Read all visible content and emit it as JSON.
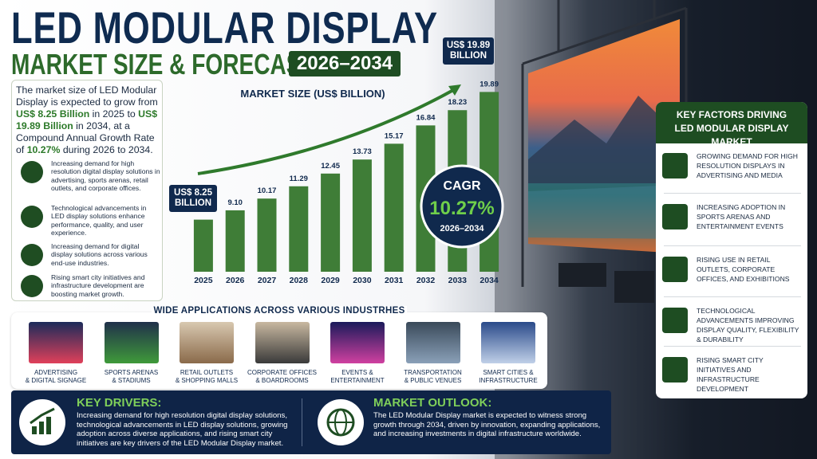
{
  "header": {
    "title": "LED MODULAR DISPLAY",
    "subtitle": "MARKET SIZE & FORECAST",
    "years": "2026–2034"
  },
  "summary": [
    "The market size of LED Modular Display is expected to grow from ",
    "US$ 8.25 Billion",
    " in 2025 to ",
    "US$ 19.89 Billion",
    " in 2034, at a Compound Annual Growth Rate of ",
    "10.27%",
    " during 2026 to 2034."
  ],
  "points": [
    "Increasing demand for high resolution digital display solutions in advertising, sports arenas, retail outlets, and corporate offices.",
    "Technological advancements in LED display solutions enhance performance, quality, and user experience.",
    "Increasing demand for digital display solutions across various end-use industries.",
    "Rising smart city initiatives and infrastructure development are boosting market growth."
  ],
  "chart_data": {
    "type": "bar",
    "title": "MARKET SIZE (US$ BILLION)",
    "categories": [
      "2025",
      "2026",
      "2027",
      "2028",
      "2029",
      "2030",
      "2031",
      "2032",
      "2033",
      "2034"
    ],
    "values": [
      8.25,
      9.1,
      10.17,
      11.29,
      12.45,
      13.73,
      15.17,
      16.84,
      18.23,
      19.89
    ],
    "value_labels": [
      null,
      "9.10",
      "10.17",
      "11.29",
      "12.45",
      "13.73",
      "15.17",
      "16.84",
      "18.23",
      "19.89"
    ],
    "color": "#3f7d37",
    "ylim": [
      3.5,
      20.5
    ],
    "start_callout": "US$ 8.25 BILLION",
    "end_callout": "US$ 19.89 BILLION"
  },
  "cagr": {
    "label": "CAGR",
    "value": "10.27%",
    "period": "2026–2034"
  },
  "applications": {
    "title": "WIDE APPLICATIONS ACROSS VARIOUS INDUSTRHES",
    "items": [
      [
        "ADVERTISING",
        "& DIGITAL SIGNAGE"
      ],
      [
        "SPORTS ARENAS",
        "& STADIUMS"
      ],
      [
        "RETAIL OUTLETS",
        "& SHOPPING MALLS"
      ],
      [
        "CORPORATE OFFICES",
        "& BOARDROOMS"
      ],
      [
        "EVENTS &",
        "ENTERTAINMENT"
      ],
      [
        "TRANSPORTATION",
        "& PUBLIC VENUES"
      ],
      [
        "SMART CITIES &",
        "INFRASTRUCTURE"
      ]
    ]
  },
  "key_factors": {
    "title": [
      "KEY FACTORS DRIVING",
      "LED MODULAR DISPLAY MARKET"
    ],
    "items": [
      "GROWING DEMAND FOR HIGH RESOLUTION DISPLAYS IN ADVERTISING AND MEDIA",
      "INCREASING ADOPTION IN SPORTS ARENAS AND ENTERTAINMENT EVENTS",
      "RISING USE IN RETAIL OUTLETS, CORPORATE OFFICES, AND EXHIBITIONS",
      "TECHNOLOGICAL ADVANCEMENTS IMPROVING DISPLAY QUALITY, FLEXIBILITY & DURABILITY",
      "RISING SMART CITY INITIATIVES AND INFRASTRUCTURE DEVELOPMENT"
    ]
  },
  "footer": {
    "drivers_title": "KEY DRIVERS:",
    "drivers_text": "Increasing demand for high resolution digital display solutions, technological advancements in LED display solutions, growing adoption across diverse applications, and rising smart city initiatives are key drivers of the LED Modular Display market.",
    "outlook_title": "MARKET OUTLOOK:",
    "outlook_text": "The LED Modular Display market is expected to witness strong growth through 2034, driven by innovation, expanding applications, and increasing investments in digital infrastructure worldwide."
  }
}
